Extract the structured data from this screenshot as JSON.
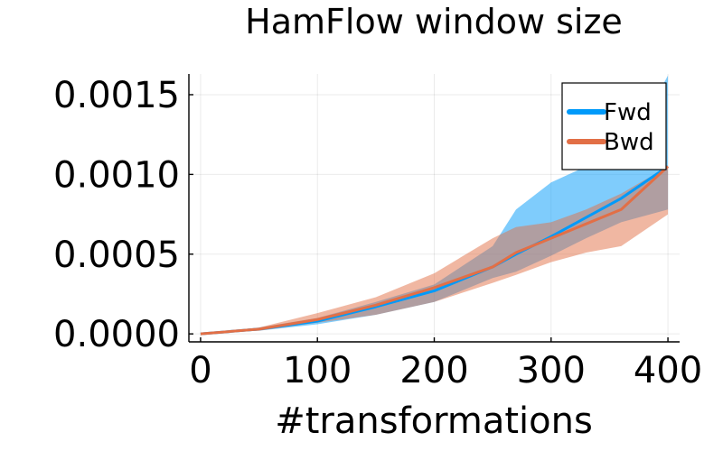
{
  "chart_data": {
    "type": "line",
    "title": "HamFlow window size",
    "xlabel": "#transformations",
    "ylabel": "",
    "xlim": [
      -10,
      410
    ],
    "ylim": [
      -5e-05,
      0.00163
    ],
    "xticks": [
      0,
      100,
      200,
      300,
      400
    ],
    "xtick_labels": [
      "0",
      "100",
      "200",
      "300",
      "400"
    ],
    "yticks": [
      0.0,
      0.0005,
      0.001,
      0.0015
    ],
    "ytick_labels": [
      "0.0000",
      "0.0005",
      "0.0010",
      "0.0015"
    ],
    "grid": true,
    "legend_position": "top-right",
    "series": [
      {
        "name": "Fwd",
        "color": "#009AFA",
        "x": [
          0,
          50,
          100,
          150,
          200,
          250,
          270,
          300,
          330,
          360,
          400
        ],
        "y": [
          0.0,
          3e-05,
          8e-05,
          0.00017,
          0.00027,
          0.00042,
          0.0005,
          0.00061,
          0.00073,
          0.00085,
          0.00105
        ],
        "lower": [
          0.0,
          2e-05,
          6e-05,
          0.00012,
          0.0002,
          0.00035,
          0.00039,
          0.00049,
          0.0006,
          0.0007,
          0.00078
        ],
        "upper": [
          0.0,
          4e-05,
          0.0001,
          0.0002,
          0.00031,
          0.00055,
          0.00078,
          0.00095,
          0.00105,
          0.00108,
          0.00162
        ]
      },
      {
        "name": "Bwd",
        "color": "#E26F46",
        "x": [
          0,
          50,
          100,
          150,
          200,
          250,
          270,
          300,
          330,
          360,
          400
        ],
        "y": [
          0.0,
          3e-05,
          9e-05,
          0.00018,
          0.00029,
          0.00042,
          0.00051,
          0.0006,
          0.00069,
          0.00078,
          0.00105
        ],
        "lower": [
          0.0,
          2e-05,
          7e-05,
          0.00012,
          0.0002,
          0.00032,
          0.00037,
          0.00045,
          0.00051,
          0.00055,
          0.00075
        ],
        "upper": [
          0.0,
          4e-05,
          0.00013,
          0.00023,
          0.00038,
          0.0006,
          0.00067,
          0.0007,
          0.00078,
          0.00088,
          0.00105
        ]
      }
    ]
  }
}
